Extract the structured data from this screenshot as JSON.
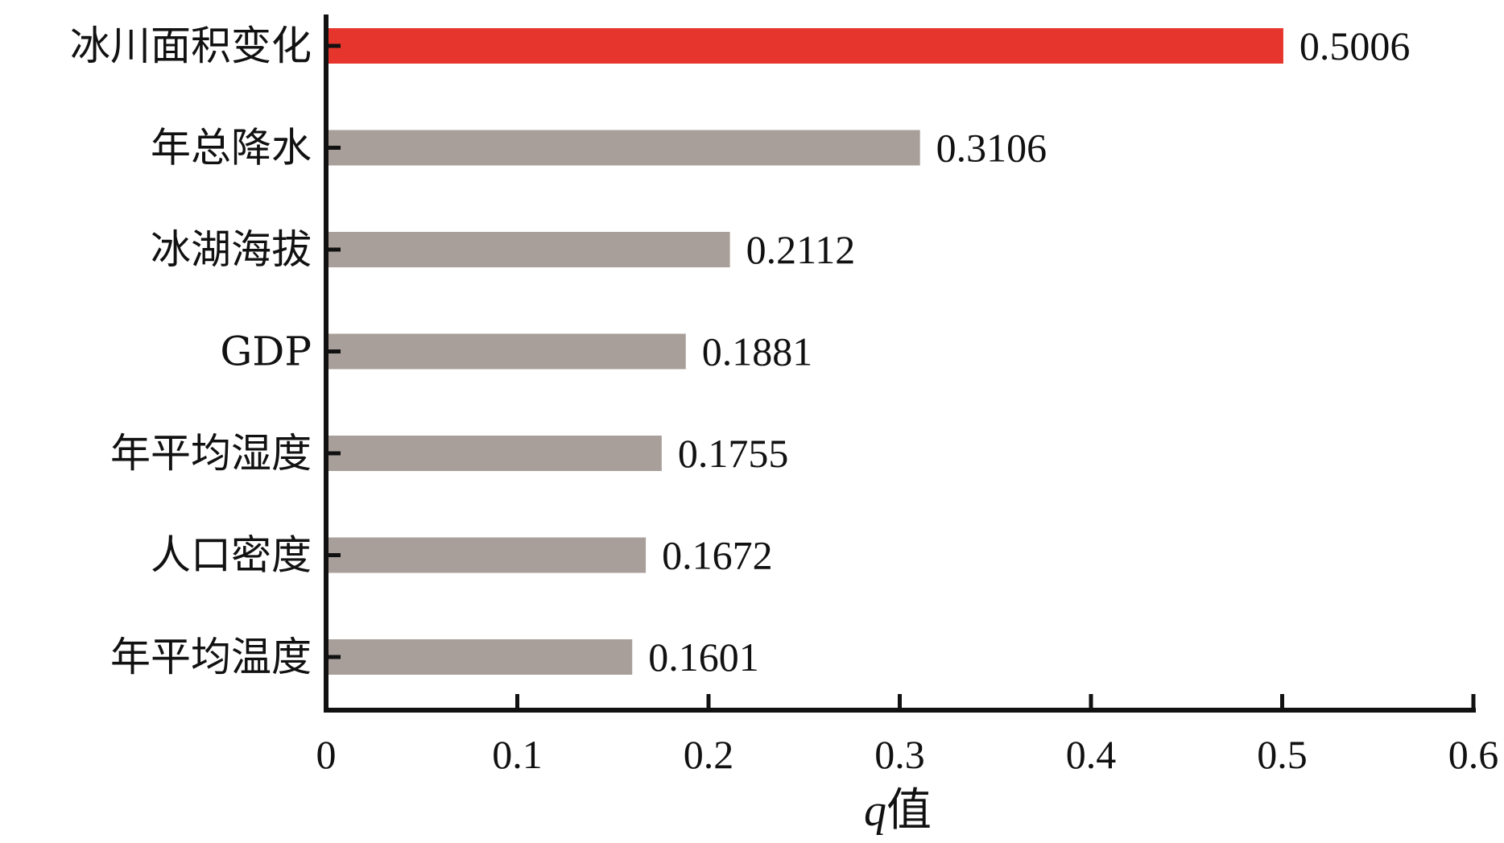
{
  "chart_data": {
    "type": "bar",
    "orientation": "horizontal",
    "categories": [
      "冰川面积变化",
      "年总降水",
      "冰湖海拔",
      "GDP",
      "年平均湿度",
      "人口密度",
      "年平均温度"
    ],
    "values": [
      0.5006,
      0.3106,
      0.2112,
      0.1881,
      0.1755,
      0.1672,
      0.1601
    ],
    "value_labels": [
      "0.5006",
      "0.3106",
      "0.2112",
      "0.1881",
      "0.1755",
      "0.1672",
      "0.1601"
    ],
    "highlight_color": "#e5352c",
    "bar_color": "#a89f9a",
    "xlim": [
      0,
      0.6
    ],
    "xticks": [
      0,
      0.1,
      0.2,
      0.3,
      0.4,
      0.5,
      0.6
    ],
    "xtick_labels": [
      "0",
      "0.1",
      "0.2",
      "0.3",
      "0.4",
      "0.5",
      "0.6"
    ],
    "xlabel_var": "q",
    "xlabel_rest": "值",
    "grid": false
  }
}
